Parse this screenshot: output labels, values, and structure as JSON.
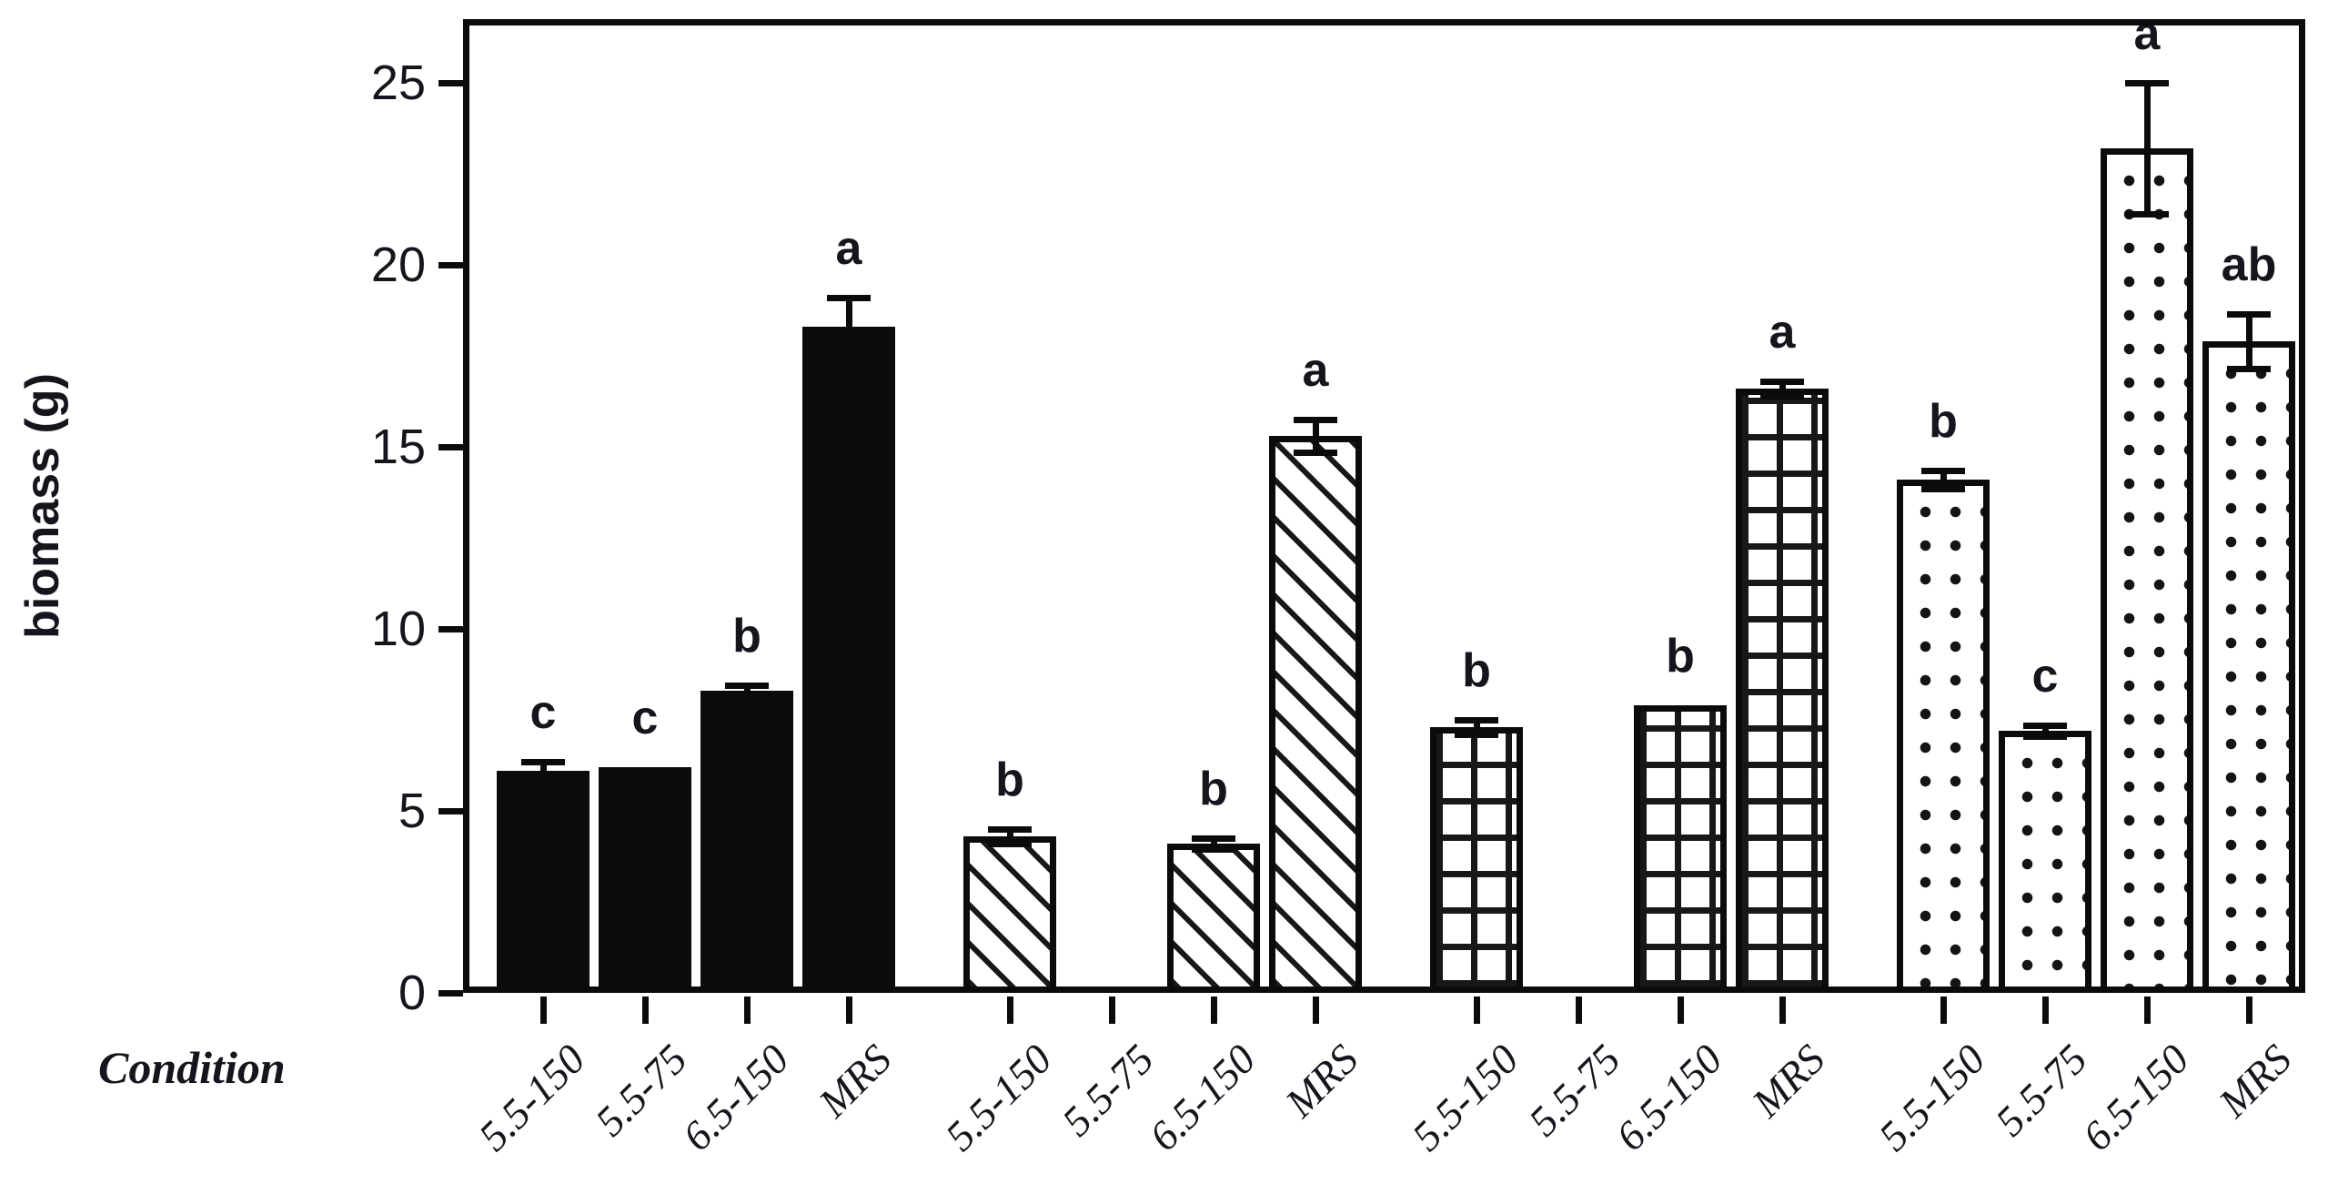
{
  "colors": {
    "ink": "#0b0b0b",
    "background": "#ffffff"
  },
  "axes": {
    "y_title": "biomass (g)",
    "x_title": "Condition",
    "y_tick_labels": [
      "0",
      "5",
      "10",
      "15",
      "20",
      "25"
    ]
  },
  "chart_data": {
    "type": "bar",
    "title": "",
    "xlabel": "Condition",
    "ylabel": "biomass (g)",
    "ylim": [
      0,
      25
    ],
    "yticks": [
      0,
      5,
      10,
      15,
      20,
      25
    ],
    "grid": false,
    "legend": "none",
    "categories": [
      "5.5-150",
      "5.5-75",
      "6.5-150",
      "MRS",
      "5.5-150",
      "5.5-75",
      "6.5-150",
      "MRS",
      "5.5-150",
      "5.5-75",
      "6.5-150",
      "MRS",
      "5.5-150",
      "5.5-75",
      "6.5-150",
      "MRS"
    ],
    "groups": [
      {
        "name": "solid-black",
        "pattern": "solid",
        "bars": [
          {
            "label": "5.5-150",
            "value": 6.1,
            "error": 0.25,
            "letter": "c"
          },
          {
            "label": "5.5-75",
            "value": 6.2,
            "error": 0,
            "letter": "c"
          },
          {
            "label": "6.5-150",
            "value": 8.3,
            "error": 0.15,
            "letter": "b"
          },
          {
            "label": "MRS",
            "value": 18.3,
            "error": 0.8,
            "letter": "a"
          }
        ]
      },
      {
        "name": "diagonal-hatch",
        "pattern": "diag",
        "bars": [
          {
            "label": "5.5-150",
            "value": 4.3,
            "error": 0.2,
            "letter": "b"
          },
          {
            "label": "5.5-75",
            "value": null,
            "error": null,
            "letter": ""
          },
          {
            "label": "6.5-150",
            "value": 4.1,
            "error": 0.15,
            "letter": "b"
          },
          {
            "label": "MRS",
            "value": 15.3,
            "error": 0.45,
            "letter": "a"
          }
        ]
      },
      {
        "name": "grid-hatch",
        "pattern": "grid",
        "bars": [
          {
            "label": "5.5-150",
            "value": 7.3,
            "error": 0.2,
            "letter": "b"
          },
          {
            "label": "5.5-75",
            "value": null,
            "error": null,
            "letter": ""
          },
          {
            "label": "6.5-150",
            "value": 7.9,
            "error": 0,
            "letter": "b"
          },
          {
            "label": "MRS",
            "value": 16.6,
            "error": 0.2,
            "letter": "a"
          }
        ]
      },
      {
        "name": "dotted",
        "pattern": "dots",
        "bars": [
          {
            "label": "5.5-150",
            "value": 14.1,
            "error": 0.25,
            "letter": "b"
          },
          {
            "label": "5.5-75",
            "value": 7.2,
            "error": 0.15,
            "letter": "c"
          },
          {
            "label": "6.5-150",
            "value": 23.2,
            "error": 1.8,
            "letter": "a"
          },
          {
            "label": "MRS",
            "value": 17.9,
            "error": 0.75,
            "letter": "ab"
          }
        ]
      }
    ]
  }
}
